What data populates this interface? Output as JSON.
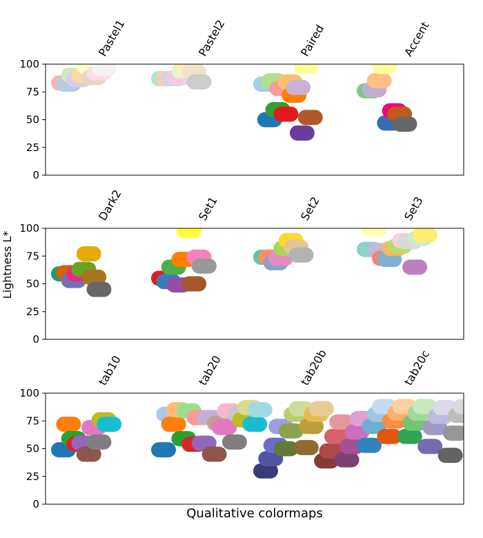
{
  "chart_data": {
    "type": "scatter",
    "xlabel": "Qualitative colormaps",
    "ylabel": "Lightness L*",
    "ylim": [
      0,
      100
    ],
    "yticks": [
      "0",
      "25",
      "50",
      "75",
      "100"
    ],
    "grid": false,
    "panels": [
      {
        "colormaps": [
          {
            "name": "Pastel1",
            "points": [
              {
                "x": 0.0,
                "y": 83,
                "color": "#fbb4ae"
              },
              {
                "x": 0.5,
                "y": 82,
                "color": "#b3cde3"
              },
              {
                "x": 1.0,
                "y": 90,
                "color": "#ccebc5"
              },
              {
                "x": 1.5,
                "y": 86,
                "color": "#decbe4"
              },
              {
                "x": 2.0,
                "y": 90,
                "color": "#fed9a6"
              },
              {
                "x": 2.5,
                "y": 98,
                "color": "#ffffcc"
              },
              {
                "x": 3.0,
                "y": 88,
                "color": "#e5d8bd"
              },
              {
                "x": 3.5,
                "y": 92,
                "color": "#fddaec"
              },
              {
                "x": 4.0,
                "y": 96,
                "color": "#f2f2f2"
              }
            ]
          },
          {
            "name": "Pastel2",
            "points": [
              {
                "x": 0.0,
                "y": 87,
                "color": "#b3e2cd"
              },
              {
                "x": 0.5,
                "y": 87,
                "color": "#fdcdac"
              },
              {
                "x": 1.0,
                "y": 87,
                "color": "#cbd5e8"
              },
              {
                "x": 1.5,
                "y": 88,
                "color": "#f4cae4"
              },
              {
                "x": 2.0,
                "y": 94,
                "color": "#e6f5c9"
              },
              {
                "x": 2.5,
                "y": 97,
                "color": "#fff2ae"
              },
              {
                "x": 3.0,
                "y": 93,
                "color": "#f1e2cc"
              },
              {
                "x": 3.5,
                "y": 84,
                "color": "#cccccc"
              }
            ]
          },
          {
            "name": "Paired",
            "points": [
              {
                "x": 0.0,
                "y": 82,
                "color": "#a6cee3"
              },
              {
                "x": 0.4,
                "y": 50,
                "color": "#1f78b4"
              },
              {
                "x": 0.8,
                "y": 85,
                "color": "#b2df8a"
              },
              {
                "x": 1.2,
                "y": 59,
                "color": "#33a02c"
              },
              {
                "x": 1.6,
                "y": 78,
                "color": "#fb9a99"
              },
              {
                "x": 2.0,
                "y": 55,
                "color": "#e31a1c"
              },
              {
                "x": 2.4,
                "y": 84,
                "color": "#fdbf6f"
              },
              {
                "x": 2.8,
                "y": 72,
                "color": "#ff7f00"
              },
              {
                "x": 3.2,
                "y": 79,
                "color": "#cab2d6"
              },
              {
                "x": 3.6,
                "y": 38,
                "color": "#6a3d9a"
              },
              {
                "x": 4.0,
                "y": 98,
                "color": "#ffff99"
              },
              {
                "x": 4.4,
                "y": 52,
                "color": "#b15928"
              }
            ]
          },
          {
            "name": "Accent",
            "points": [
              {
                "x": 0.0,
                "y": 76,
                "color": "#7fc97f"
              },
              {
                "x": 0.5,
                "y": 77,
                "color": "#beaed4"
              },
              {
                "x": 1.0,
                "y": 85,
                "color": "#fdc086"
              },
              {
                "x": 1.5,
                "y": 98,
                "color": "#ffff99"
              },
              {
                "x": 2.0,
                "y": 47,
                "color": "#386cb0"
              },
              {
                "x": 2.5,
                "y": 58,
                "color": "#f0027f"
              },
              {
                "x": 3.0,
                "y": 55,
                "color": "#bf5b17"
              },
              {
                "x": 3.5,
                "y": 46,
                "color": "#666666"
              }
            ]
          }
        ]
      },
      {
        "colormaps": [
          {
            "name": "Dark2",
            "points": [
              {
                "x": 0.0,
                "y": 59,
                "color": "#1b9e77"
              },
              {
                "x": 0.5,
                "y": 60,
                "color": "#d95f02"
              },
              {
                "x": 1.0,
                "y": 53,
                "color": "#7570b3"
              },
              {
                "x": 1.5,
                "y": 59,
                "color": "#e7298a"
              },
              {
                "x": 2.0,
                "y": 63,
                "color": "#66a61e"
              },
              {
                "x": 2.5,
                "y": 77,
                "color": "#e6ab02"
              },
              {
                "x": 3.0,
                "y": 56,
                "color": "#a6761d"
              },
              {
                "x": 3.5,
                "y": 45,
                "color": "#666666"
              }
            ]
          },
          {
            "name": "Set1",
            "points": [
              {
                "x": 0.0,
                "y": 55,
                "color": "#e41a1c"
              },
              {
                "x": 0.5,
                "y": 52,
                "color": "#377eb8"
              },
              {
                "x": 1.0,
                "y": 65,
                "color": "#4daf4a"
              },
              {
                "x": 1.5,
                "y": 49,
                "color": "#984ea3"
              },
              {
                "x": 2.0,
                "y": 72,
                "color": "#ff7f00"
              },
              {
                "x": 2.5,
                "y": 98,
                "color": "#ffff33"
              },
              {
                "x": 3.0,
                "y": 50,
                "color": "#a65628"
              },
              {
                "x": 3.5,
                "y": 74,
                "color": "#f781bf"
              },
              {
                "x": 4.0,
                "y": 66,
                "color": "#999999"
              }
            ]
          },
          {
            "name": "Set2",
            "points": [
              {
                "x": 0.0,
                "y": 74,
                "color": "#66c2a5"
              },
              {
                "x": 0.5,
                "y": 74,
                "color": "#fc8d62"
              },
              {
                "x": 1.0,
                "y": 69,
                "color": "#8da0cb"
              },
              {
                "x": 1.5,
                "y": 73,
                "color": "#e78ac3"
              },
              {
                "x": 2.0,
                "y": 82,
                "color": "#a6d854"
              },
              {
                "x": 2.5,
                "y": 89,
                "color": "#ffd92f"
              },
              {
                "x": 3.0,
                "y": 83,
                "color": "#e5c494"
              },
              {
                "x": 3.5,
                "y": 76,
                "color": "#b3b3b3"
              }
            ]
          },
          {
            "name": "Set3",
            "points": [
              {
                "x": 0.0,
                "y": 81,
                "color": "#8dd3c7"
              },
              {
                "x": 0.5,
                "y": 99,
                "color": "#ffffb3"
              },
              {
                "x": 1.0,
                "y": 80,
                "color": "#bebada"
              },
              {
                "x": 1.5,
                "y": 73,
                "color": "#fb8072"
              },
              {
                "x": 2.0,
                "y": 72,
                "color": "#80b1d3"
              },
              {
                "x": 2.5,
                "y": 82,
                "color": "#fdb462"
              },
              {
                "x": 3.0,
                "y": 84,
                "color": "#b3de69"
              },
              {
                "x": 3.5,
                "y": 89,
                "color": "#fccde5"
              },
              {
                "x": 4.0,
                "y": 88,
                "color": "#d9d9d9"
              },
              {
                "x": 4.5,
                "y": 65,
                "color": "#bc80bd"
              },
              {
                "x": 5.0,
                "y": 91,
                "color": "#ccebc5"
              },
              {
                "x": 5.5,
                "y": 94,
                "color": "#ffed6f"
              }
            ]
          }
        ]
      },
      {
        "colormaps": [
          {
            "name": "tab10",
            "points": [
              {
                "x": 0.0,
                "y": 49,
                "color": "#1f77b4"
              },
              {
                "x": 0.5,
                "y": 72,
                "color": "#ff7f0e"
              },
              {
                "x": 1.0,
                "y": 59,
                "color": "#2ca02c"
              },
              {
                "x": 1.5,
                "y": 54,
                "color": "#d62728"
              },
              {
                "x": 2.0,
                "y": 55,
                "color": "#9467bd"
              },
              {
                "x": 2.5,
                "y": 45,
                "color": "#8c564b"
              },
              {
                "x": 3.0,
                "y": 69,
                "color": "#e377c2"
              },
              {
                "x": 3.5,
                "y": 56,
                "color": "#7f7f7f"
              },
              {
                "x": 4.0,
                "y": 76,
                "color": "#bcbd22"
              },
              {
                "x": 4.5,
                "y": 72,
                "color": "#17becf"
              }
            ]
          },
          {
            "name": "tab20",
            "points": [
              {
                "x": 0.0,
                "y": 49,
                "color": "#1f77b4"
              },
              {
                "x": 0.5,
                "y": 81,
                "color": "#aec7e8"
              },
              {
                "x": 1.0,
                "y": 72,
                "color": "#ff7f0e"
              },
              {
                "x": 1.5,
                "y": 85,
                "color": "#ffbb78"
              },
              {
                "x": 2.0,
                "y": 59,
                "color": "#2ca02c"
              },
              {
                "x": 2.5,
                "y": 84,
                "color": "#98df8a"
              },
              {
                "x": 3.0,
                "y": 54,
                "color": "#d62728"
              },
              {
                "x": 3.5,
                "y": 78,
                "color": "#ff9896"
              },
              {
                "x": 4.0,
                "y": 55,
                "color": "#9467bd"
              },
              {
                "x": 4.5,
                "y": 78,
                "color": "#c5b0d5"
              },
              {
                "x": 5.0,
                "y": 45,
                "color": "#8c564b"
              },
              {
                "x": 5.5,
                "y": 73,
                "color": "#c49c94"
              },
              {
                "x": 6.0,
                "y": 69,
                "color": "#e377c2"
              },
              {
                "x": 6.5,
                "y": 84,
                "color": "#f7b6d2"
              },
              {
                "x": 7.0,
                "y": 56,
                "color": "#7f7f7f"
              },
              {
                "x": 7.5,
                "y": 81,
                "color": "#c7c7c7"
              },
              {
                "x": 8.0,
                "y": 76,
                "color": "#bcbd22"
              },
              {
                "x": 8.5,
                "y": 87,
                "color": "#dbdb8d"
              },
              {
                "x": 9.0,
                "y": 72,
                "color": "#17becf"
              },
              {
                "x": 9.5,
                "y": 85,
                "color": "#9edae5"
              }
            ]
          },
          {
            "name": "tab20b",
            "points": [
              {
                "x": 0.0,
                "y": 30,
                "color": "#393b79"
              },
              {
                "x": 0.5,
                "y": 41,
                "color": "#5254a3"
              },
              {
                "x": 1.0,
                "y": 53,
                "color": "#6b6ecf"
              },
              {
                "x": 1.5,
                "y": 70,
                "color": "#9c9ede"
              },
              {
                "x": 2.0,
                "y": 50,
                "color": "#637939"
              },
              {
                "x": 2.5,
                "y": 66,
                "color": "#8ca252"
              },
              {
                "x": 3.0,
                "y": 81,
                "color": "#b5cf6b"
              },
              {
                "x": 3.5,
                "y": 86,
                "color": "#cedb9c"
              },
              {
                "x": 4.0,
                "y": 51,
                "color": "#8c6d31"
              },
              {
                "x": 4.5,
                "y": 70,
                "color": "#bd9e39"
              },
              {
                "x": 5.0,
                "y": 81,
                "color": "#e7ba52"
              },
              {
                "x": 5.5,
                "y": 86,
                "color": "#e7cb94"
              },
              {
                "x": 6.0,
                "y": 39,
                "color": "#843c39"
              },
              {
                "x": 6.5,
                "y": 48,
                "color": "#ad494a"
              },
              {
                "x": 7.0,
                "y": 61,
                "color": "#d6616b"
              },
              {
                "x": 7.5,
                "y": 74,
                "color": "#e7969c"
              },
              {
                "x": 8.0,
                "y": 40,
                "color": "#7b4173"
              },
              {
                "x": 8.5,
                "y": 52,
                "color": "#a55194"
              },
              {
                "x": 9.0,
                "y": 65,
                "color": "#ce6dbd"
              },
              {
                "x": 9.5,
                "y": 77,
                "color": "#de9ed6"
              }
            ]
          },
          {
            "name": "tab20c",
            "points": [
              {
                "x": 0.0,
                "y": 53,
                "color": "#3182bd"
              },
              {
                "x": 0.5,
                "y": 70,
                "color": "#6baed6"
              },
              {
                "x": 1.0,
                "y": 81,
                "color": "#9ecae1"
              },
              {
                "x": 1.5,
                "y": 88,
                "color": "#c6dbef"
              },
              {
                "x": 2.0,
                "y": 61,
                "color": "#e6550d"
              },
              {
                "x": 2.5,
                "y": 75,
                "color": "#fd8d3c"
              },
              {
                "x": 3.0,
                "y": 82,
                "color": "#fdae6b"
              },
              {
                "x": 3.5,
                "y": 88,
                "color": "#fdd0a2"
              },
              {
                "x": 4.0,
                "y": 61,
                "color": "#31a354"
              },
              {
                "x": 4.5,
                "y": 73,
                "color": "#74c476"
              },
              {
                "x": 5.0,
                "y": 82,
                "color": "#a1d99b"
              },
              {
                "x": 5.5,
                "y": 88,
                "color": "#c7e9c0"
              },
              {
                "x": 6.0,
                "y": 52,
                "color": "#756bb1"
              },
              {
                "x": 6.5,
                "y": 69,
                "color": "#9e9ac8"
              },
              {
                "x": 7.0,
                "y": 79,
                "color": "#bcbddc"
              },
              {
                "x": 7.5,
                "y": 87,
                "color": "#dadaeb"
              },
              {
                "x": 8.0,
                "y": 44,
                "color": "#636363"
              },
              {
                "x": 8.5,
                "y": 64,
                "color": "#969696"
              },
              {
                "x": 9.0,
                "y": 80,
                "color": "#bdbdbd"
              },
              {
                "x": 9.5,
                "y": 88,
                "color": "#d9d9d9"
              }
            ]
          }
        ]
      }
    ]
  }
}
